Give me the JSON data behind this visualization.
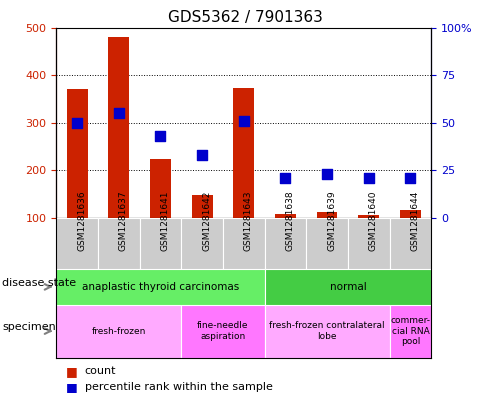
{
  "title": "GDS5362 / 7901363",
  "samples": [
    "GSM1281636",
    "GSM1281637",
    "GSM1281641",
    "GSM1281642",
    "GSM1281643",
    "GSM1281638",
    "GSM1281639",
    "GSM1281640",
    "GSM1281644"
  ],
  "counts": [
    370,
    480,
    225,
    148,
    373,
    108,
    113,
    107,
    118
  ],
  "percentile_ranks": [
    50,
    55,
    43,
    33,
    51,
    21,
    23,
    21,
    21
  ],
  "count_baseline": 100,
  "ylim_left": [
    100,
    500
  ],
  "ylim_right": [
    0,
    100
  ],
  "yticks_left": [
    100,
    200,
    300,
    400,
    500
  ],
  "yticks_right": [
    0,
    25,
    50,
    75,
    100
  ],
  "ytick_right_labels": [
    "0",
    "25",
    "50",
    "75",
    "100%"
  ],
  "disease_state_groups": [
    {
      "label": "anaplastic thyroid carcinomas",
      "start": 0,
      "end": 5,
      "color": "#66ee66"
    },
    {
      "label": "normal",
      "start": 5,
      "end": 9,
      "color": "#44cc44"
    }
  ],
  "specimen_groups": [
    {
      "label": "fresh-frozen",
      "start": 0,
      "end": 3,
      "color": "#ffaaff"
    },
    {
      "label": "fine-needle\naspiration",
      "start": 3,
      "end": 5,
      "color": "#ff77ff"
    },
    {
      "label": "fresh-frozen contralateral\nlobe",
      "start": 5,
      "end": 8,
      "color": "#ffaaff"
    },
    {
      "label": "commer-\ncial RNA\npool",
      "start": 8,
      "end": 9,
      "color": "#ff77ff"
    }
  ],
  "bar_color": "#cc2200",
  "dot_color": "#0000cc",
  "grid_color": "#000000",
  "axis_color_left": "#cc2200",
  "axis_color_right": "#0000cc",
  "bar_width": 0.5,
  "dot_size": 55,
  "legend_count_label": "count",
  "legend_pct_label": "percentile rank within the sample",
  "disease_state_label": "disease state",
  "specimen_label": "specimen",
  "xticklabel_bg": "#cccccc",
  "fig_width": 4.9,
  "fig_height": 3.93,
  "dpi": 100
}
